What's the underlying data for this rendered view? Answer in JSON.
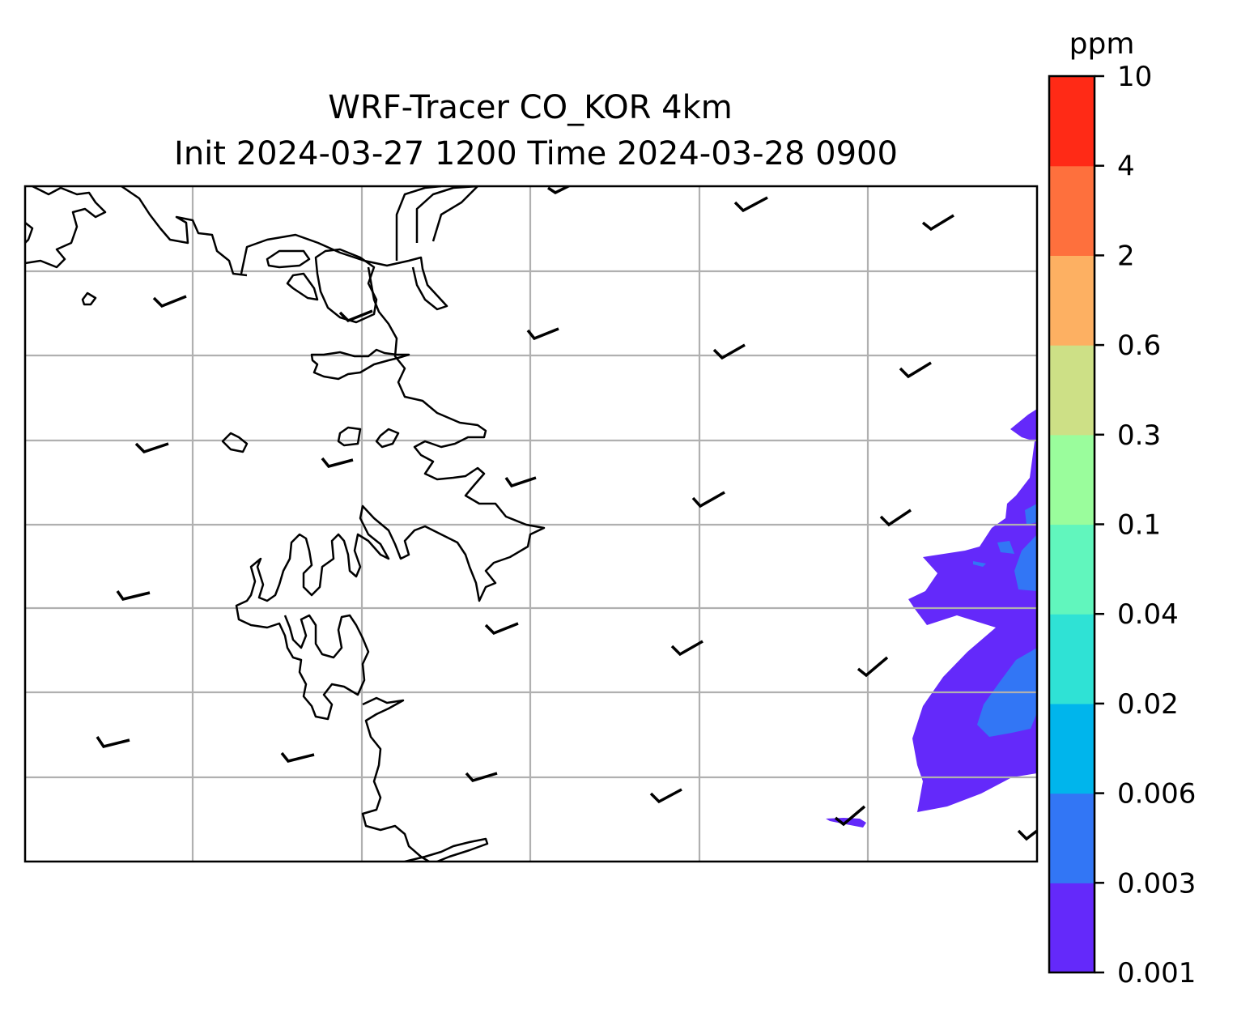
{
  "title": {
    "line1": "WRF-Tracer CO_KOR 4km",
    "line2": "Init 2024-03-27 1200 Time 2024-03-28 0900"
  },
  "colorbar": {
    "units": "ppm",
    "levels": [
      "0.001",
      "0.003",
      "0.006",
      "0.02",
      "0.04",
      "0.1",
      "0.3",
      "0.6",
      "2",
      "4",
      "10"
    ],
    "colors": [
      "#6429fa",
      "#3276f5",
      "#00b5ec",
      "#2fe2d5",
      "#61f6bd",
      "#9afd9c",
      "#cde086",
      "#fdb062",
      "#fe703d",
      "#ff2a16"
    ]
  },
  "map": {
    "features": [
      "coastlines",
      "gridlines",
      "wind-barbs",
      "co-tracer-contours"
    ],
    "contour_levels_present": [
      "0.001",
      "0.003"
    ]
  }
}
